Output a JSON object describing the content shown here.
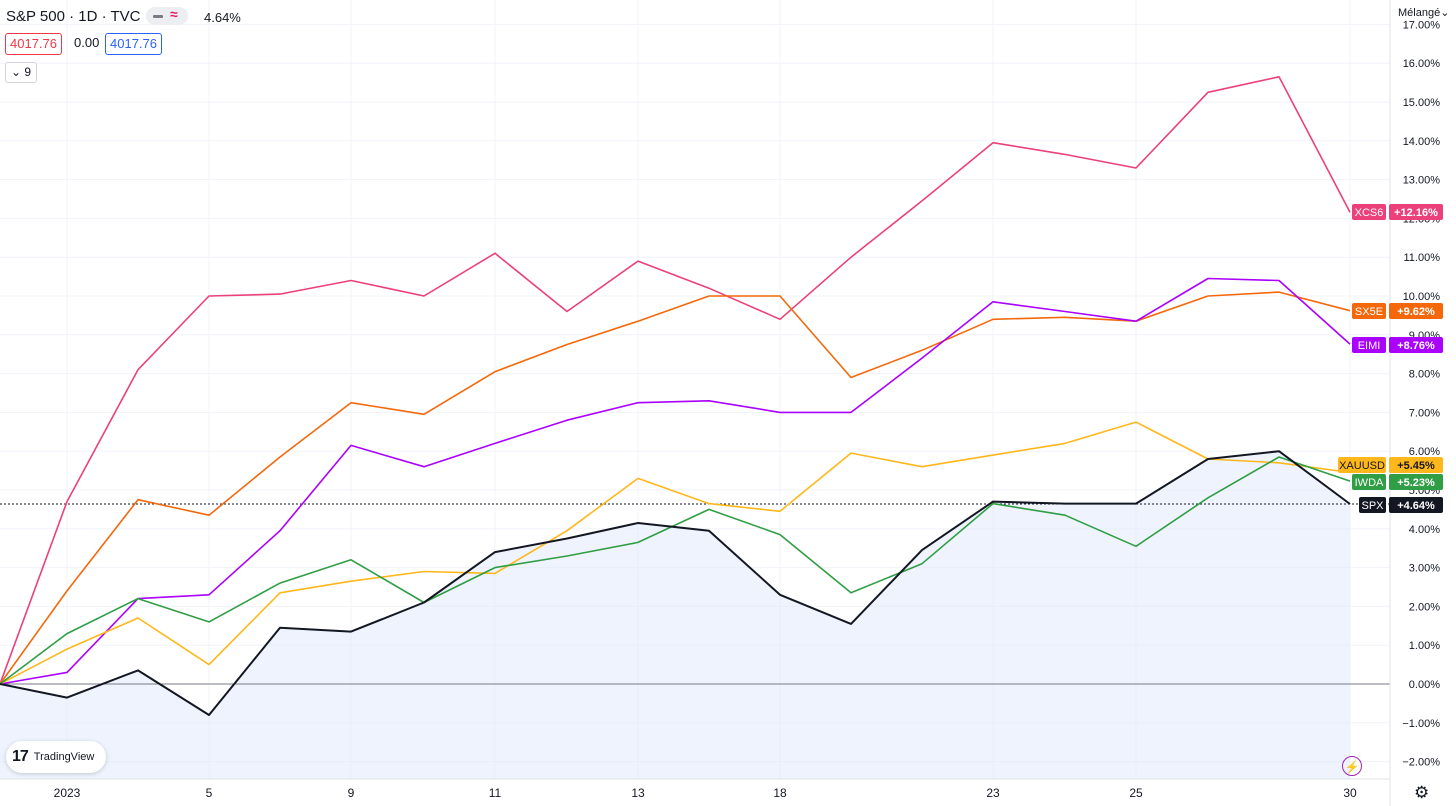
{
  "header": {
    "title": "S&P 500 · 1D · TVC",
    "change_pct": "4.64%",
    "price_left": "4017.76",
    "price_change": "0.00",
    "price_right": "4017.76",
    "collapse_label": "9",
    "scale_mode": "Mélangé"
  },
  "branding": {
    "logo_text": "TradingView"
  },
  "chart_data": {
    "type": "line",
    "yaxis_unit": "%",
    "ylim": [
      -2.2,
      17.2
    ],
    "y_ticks": [
      -2,
      -1,
      0,
      1,
      2,
      3,
      4,
      5,
      6,
      7,
      8,
      9,
      10,
      11,
      12,
      13,
      14,
      15,
      16,
      17
    ],
    "y_tick_labels": [
      "−2.00%",
      "−1.00%",
      "0.00%",
      "1.00%",
      "2.00%",
      "3.00%",
      "4.00%",
      "5.00%",
      "6.00%",
      "7.00%",
      "8.00%",
      "9.00%",
      "10.00%",
      "11.00%",
      "12.00%",
      "13.00%",
      "14.00%",
      "15.00%",
      "16.00%",
      "17.00%"
    ],
    "x_tick_labels": [
      "2023",
      "5",
      "9",
      "11",
      "13",
      "18",
      "23",
      "25",
      "30"
    ],
    "x_tick_days": [
      3,
      5,
      9,
      11,
      13,
      18,
      23,
      25,
      30
    ],
    "x_month": "2023-01",
    "x_days": [
      30,
      3,
      4,
      5,
      6,
      9,
      10,
      11,
      12,
      13,
      16,
      18,
      19,
      20,
      23,
      24,
      25,
      26,
      27,
      30
    ],
    "gridlines": true,
    "reference_line": 4.64,
    "series": [
      {
        "name": "XCS6",
        "color": "#ec407a",
        "last_label": "+12.16%",
        "values": [
          0,
          4.7,
          8.1,
          10.0,
          10.05,
          10.4,
          10.0,
          11.1,
          9.6,
          10.9,
          10.2,
          9.4,
          11.0,
          12.45,
          13.95,
          13.65,
          13.3,
          15.25,
          15.65,
          12.16
        ]
      },
      {
        "name": "SX5E",
        "color": "#f4680b",
        "last_label": "+9.62%",
        "values": [
          0,
          2.4,
          4.75,
          4.35,
          5.85,
          7.25,
          6.95,
          8.05,
          8.75,
          9.35,
          10.0,
          10.0,
          7.9,
          8.6,
          9.4,
          9.45,
          9.35,
          10.0,
          10.1,
          9.62
        ]
      },
      {
        "name": "EIMI",
        "color": "#aa00ff",
        "last_label": "+8.76%",
        "values": [
          0,
          0.3,
          2.2,
          2.3,
          3.95,
          6.15,
          5.6,
          6.2,
          6.8,
          7.25,
          7.3,
          7.0,
          7.0,
          8.4,
          9.85,
          9.6,
          9.35,
          10.45,
          10.4,
          8.76
        ]
      },
      {
        "name": "XAUUSD",
        "color": "#ffb71b",
        "last_label": "+5.45%",
        "values": [
          0,
          0.9,
          1.7,
          0.5,
          2.35,
          2.65,
          2.9,
          2.85,
          3.95,
          5.3,
          4.65,
          4.45,
          5.95,
          5.6,
          5.9,
          6.2,
          6.75,
          5.8,
          5.7,
          5.45
        ]
      },
      {
        "name": "IWDA",
        "color": "#2f9e44",
        "last_label": "+5.23%",
        "values": [
          0,
          1.3,
          2.2,
          1.6,
          2.6,
          3.2,
          2.1,
          3.0,
          3.3,
          3.65,
          4.5,
          3.85,
          2.35,
          3.1,
          4.65,
          4.35,
          3.55,
          4.8,
          5.85,
          5.23
        ]
      },
      {
        "name": "SPX",
        "color": "#131722",
        "last_label": "+4.64%",
        "values": [
          0,
          -0.35,
          0.35,
          -0.8,
          1.45,
          1.35,
          2.1,
          3.4,
          3.75,
          4.15,
          3.95,
          2.3,
          1.55,
          3.45,
          4.7,
          4.65,
          4.65,
          5.8,
          6.0,
          4.64
        ]
      }
    ]
  }
}
